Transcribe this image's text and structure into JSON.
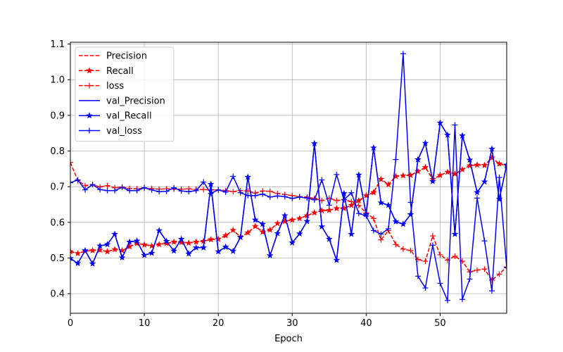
{
  "chart_data": {
    "type": "line",
    "xlabel": "Epoch",
    "ylabel": "",
    "xlim": [
      0,
      59
    ],
    "ylim": [
      0.345,
      1.105
    ],
    "xticks": [
      0,
      10,
      20,
      30,
      40,
      50
    ],
    "yticks": [
      0.4,
      0.5,
      0.6,
      0.7,
      0.8,
      0.9,
      1.0,
      1.1
    ],
    "grid": true,
    "legend_position": "top-left",
    "series": [
      {
        "name": "Precision",
        "color": "#ff0000",
        "dash": "dashed",
        "marker": "none",
        "values": [
          0.518,
          0.513,
          0.519,
          0.521,
          0.522,
          0.518,
          0.524,
          0.521,
          0.532,
          0.541,
          0.537,
          0.534,
          0.538,
          0.541,
          0.545,
          0.544,
          0.542,
          0.545,
          0.547,
          0.552,
          0.553,
          0.563,
          0.578,
          0.559,
          0.571,
          0.589,
          0.573,
          0.579,
          0.597,
          0.603,
          0.607,
          0.611,
          0.619,
          0.627,
          0.633,
          0.634,
          0.639,
          0.639,
          0.648,
          0.661,
          0.675,
          0.684,
          0.721,
          0.706,
          0.729,
          0.731,
          0.732,
          0.743,
          0.754,
          0.721,
          0.732,
          0.741,
          0.736,
          0.748,
          0.759,
          0.761,
          0.76,
          0.781,
          0.764,
          0.759
        ]
      },
      {
        "name": "Recall",
        "color": "#ff0000",
        "dash": "dashed",
        "marker": "star",
        "values": [
          0.518,
          0.513,
          0.519,
          0.521,
          0.522,
          0.518,
          0.524,
          0.521,
          0.532,
          0.541,
          0.537,
          0.534,
          0.538,
          0.541,
          0.545,
          0.544,
          0.542,
          0.545,
          0.547,
          0.552,
          0.553,
          0.563,
          0.578,
          0.559,
          0.571,
          0.589,
          0.573,
          0.579,
          0.597,
          0.603,
          0.607,
          0.611,
          0.619,
          0.627,
          0.633,
          0.634,
          0.639,
          0.639,
          0.648,
          0.661,
          0.675,
          0.684,
          0.721,
          0.706,
          0.729,
          0.731,
          0.732,
          0.743,
          0.754,
          0.721,
          0.732,
          0.741,
          0.736,
          0.748,
          0.759,
          0.761,
          0.76,
          0.781,
          0.764,
          0.759
        ]
      },
      {
        "name": "loss",
        "color": "#ff0000",
        "dash": "dashed",
        "marker": "plus",
        "values": [
          0.768,
          0.717,
          0.703,
          0.706,
          0.699,
          0.703,
          0.697,
          0.699,
          0.695,
          0.694,
          0.696,
          0.695,
          0.693,
          0.694,
          0.693,
          0.693,
          0.694,
          0.692,
          0.692,
          0.691,
          0.691,
          0.689,
          0.686,
          0.689,
          0.688,
          0.682,
          0.688,
          0.687,
          0.681,
          0.678,
          0.675,
          0.672,
          0.671,
          0.667,
          0.661,
          0.668,
          0.661,
          0.664,
          0.658,
          0.647,
          0.627,
          0.611,
          0.551,
          0.577,
          0.538,
          0.525,
          0.521,
          0.496,
          0.491,
          0.562,
          0.509,
          0.494,
          0.505,
          0.491,
          0.461,
          0.466,
          0.469,
          0.438,
          0.455,
          0.475
        ]
      },
      {
        "name": "val_Precision",
        "color": "#0000ff",
        "dash": "solid",
        "marker": "none",
        "values": [
          0.499,
          0.485,
          0.521,
          0.484,
          0.534,
          0.538,
          0.567,
          0.501,
          0.545,
          0.548,
          0.508,
          0.514,
          0.577,
          0.547,
          0.52,
          0.553,
          0.512,
          0.529,
          0.529,
          0.707,
          0.518,
          0.531,
          0.519,
          0.558,
          0.727,
          0.607,
          0.595,
          0.507,
          0.569,
          0.619,
          0.543,
          0.568,
          0.603,
          0.821,
          0.588,
          0.553,
          0.494,
          0.681,
          0.567,
          0.733,
          0.622,
          0.809,
          0.655,
          0.648,
          0.602,
          0.595,
          0.622,
          0.776,
          0.822,
          0.715,
          0.879,
          0.845,
          0.567,
          0.843,
          0.775,
          0.684,
          0.714,
          0.806,
          0.665,
          0.761
        ]
      },
      {
        "name": "val_Recall",
        "color": "#0000ff",
        "dash": "solid",
        "marker": "star",
        "values": [
          0.499,
          0.485,
          0.521,
          0.484,
          0.534,
          0.538,
          0.567,
          0.501,
          0.545,
          0.548,
          0.508,
          0.514,
          0.577,
          0.547,
          0.52,
          0.553,
          0.512,
          0.529,
          0.529,
          0.707,
          0.518,
          0.531,
          0.519,
          0.558,
          0.727,
          0.607,
          0.595,
          0.507,
          0.569,
          0.619,
          0.543,
          0.568,
          0.603,
          0.821,
          0.588,
          0.553,
          0.494,
          0.681,
          0.567,
          0.733,
          0.622,
          0.809,
          0.655,
          0.648,
          0.602,
          0.595,
          0.622,
          0.776,
          0.822,
          0.715,
          0.879,
          0.845,
          0.567,
          0.843,
          0.775,
          0.684,
          0.714,
          0.806,
          0.665,
          0.761
        ]
      },
      {
        "name": "val_loss",
        "color": "#0000ff",
        "dash": "solid",
        "marker": "plus",
        "values": [
          0.711,
          0.719,
          0.691,
          0.706,
          0.692,
          0.689,
          0.689,
          0.698,
          0.689,
          0.689,
          0.697,
          0.691,
          0.686,
          0.687,
          0.697,
          0.688,
          0.686,
          0.689,
          0.713,
          0.681,
          0.691,
          0.685,
          0.729,
          0.683,
          0.675,
          0.675,
          0.679,
          0.671,
          0.674,
          0.672,
          0.667,
          0.671,
          0.668,
          0.663,
          0.719,
          0.648,
          0.734,
          0.663,
          0.683,
          0.625,
          0.618,
          0.577,
          0.567,
          0.582,
          0.776,
          1.073,
          0.656,
          0.449,
          0.416,
          0.536,
          0.429,
          0.381,
          0.873,
          0.384,
          0.441,
          0.668,
          0.548,
          0.408,
          0.726,
          0.473
        ]
      }
    ]
  }
}
